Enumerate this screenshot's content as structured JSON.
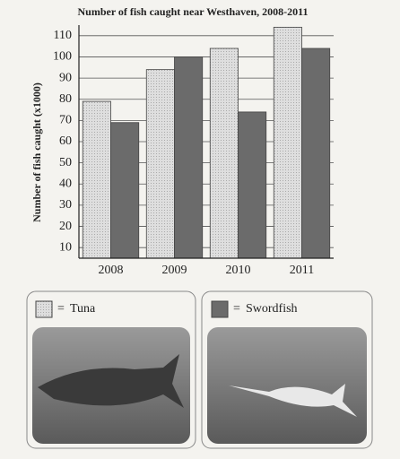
{
  "chart_data": {
    "type": "bar",
    "title": "Number of fish caught near Westhaven, 2008-2011",
    "y_label": "Number of fish caught (x1000)",
    "categories": [
      "2008",
      "2009",
      "2010",
      "2011"
    ],
    "series": [
      {
        "name": "Tuna",
        "color": "#d9d9d9",
        "values": [
          79,
          94,
          104,
          114
        ]
      },
      {
        "name": "Swordfish",
        "color": "#6b6b6b",
        "values": [
          69,
          100,
          74,
          104
        ]
      }
    ],
    "ylim": [
      5,
      115
    ],
    "yticks": [
      10,
      20,
      30,
      40,
      50,
      60,
      70,
      80,
      90,
      100,
      110
    ],
    "grid": true,
    "legend_separator": "="
  }
}
